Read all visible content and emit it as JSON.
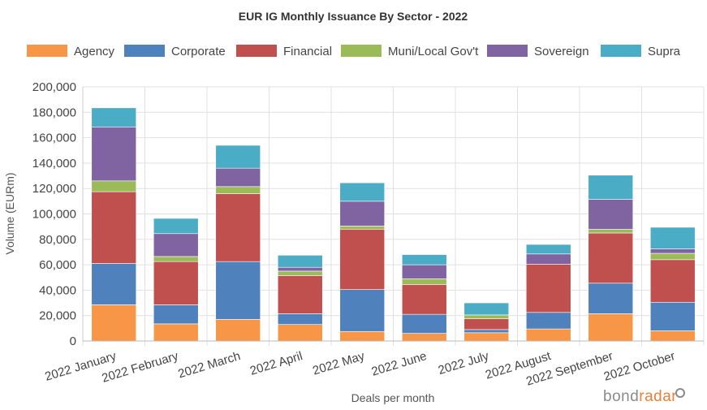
{
  "chart_data": {
    "type": "bar",
    "stacked": true,
    "title": "EUR IG Monthly Issuance By Sector - 2022",
    "xlabel": "Deals per month",
    "ylabel": "Volume (EURm)",
    "ylim": [
      0,
      200000
    ],
    "yticks": [
      0,
      20000,
      40000,
      60000,
      80000,
      100000,
      120000,
      140000,
      160000,
      180000,
      200000
    ],
    "ytick_labels": [
      "0",
      "20,000",
      "40,000",
      "60,000",
      "80,000",
      "100,000",
      "120,000",
      "140,000",
      "160,000",
      "180,000",
      "200,000"
    ],
    "grid": true,
    "legend_position": "top",
    "categories": [
      "2022 January",
      "2022 February",
      "2022 March",
      "2022 April",
      "2022 May",
      "2022 June",
      "2022 July",
      "2022 August",
      "2022 September",
      "2022 October"
    ],
    "series": [
      {
        "name": "Agency",
        "color": "#f79646",
        "values": [
          28500,
          13500,
          17000,
          13000,
          7500,
          6000,
          6500,
          9500,
          21500,
          8000
        ]
      },
      {
        "name": "Corporate",
        "color": "#4f81bd",
        "values": [
          32500,
          15000,
          45500,
          8500,
          33000,
          15000,
          2500,
          13000,
          24000,
          22500
        ]
      },
      {
        "name": "Financial",
        "color": "#c0504d",
        "values": [
          56500,
          34000,
          53500,
          30000,
          47500,
          23500,
          8500,
          38000,
          39500,
          33500
        ]
      },
      {
        "name": "Muni/Local Gov't",
        "color": "#9bbb59",
        "values": [
          8500,
          4000,
          5500,
          3500,
          2500,
          4500,
          3000,
          0,
          3000,
          5000
        ]
      },
      {
        "name": "Sovereign",
        "color": "#8064a2",
        "values": [
          42500,
          18000,
          14500,
          3000,
          19500,
          11000,
          0,
          8000,
          23500,
          3500
        ]
      },
      {
        "name": "Supra",
        "color": "#4bacc6",
        "values": [
          15000,
          12000,
          18000,
          9500,
          14500,
          8000,
          9500,
          7500,
          19000,
          17000
        ]
      }
    ]
  },
  "brand": {
    "bond": "bond",
    "radar": "radar"
  }
}
